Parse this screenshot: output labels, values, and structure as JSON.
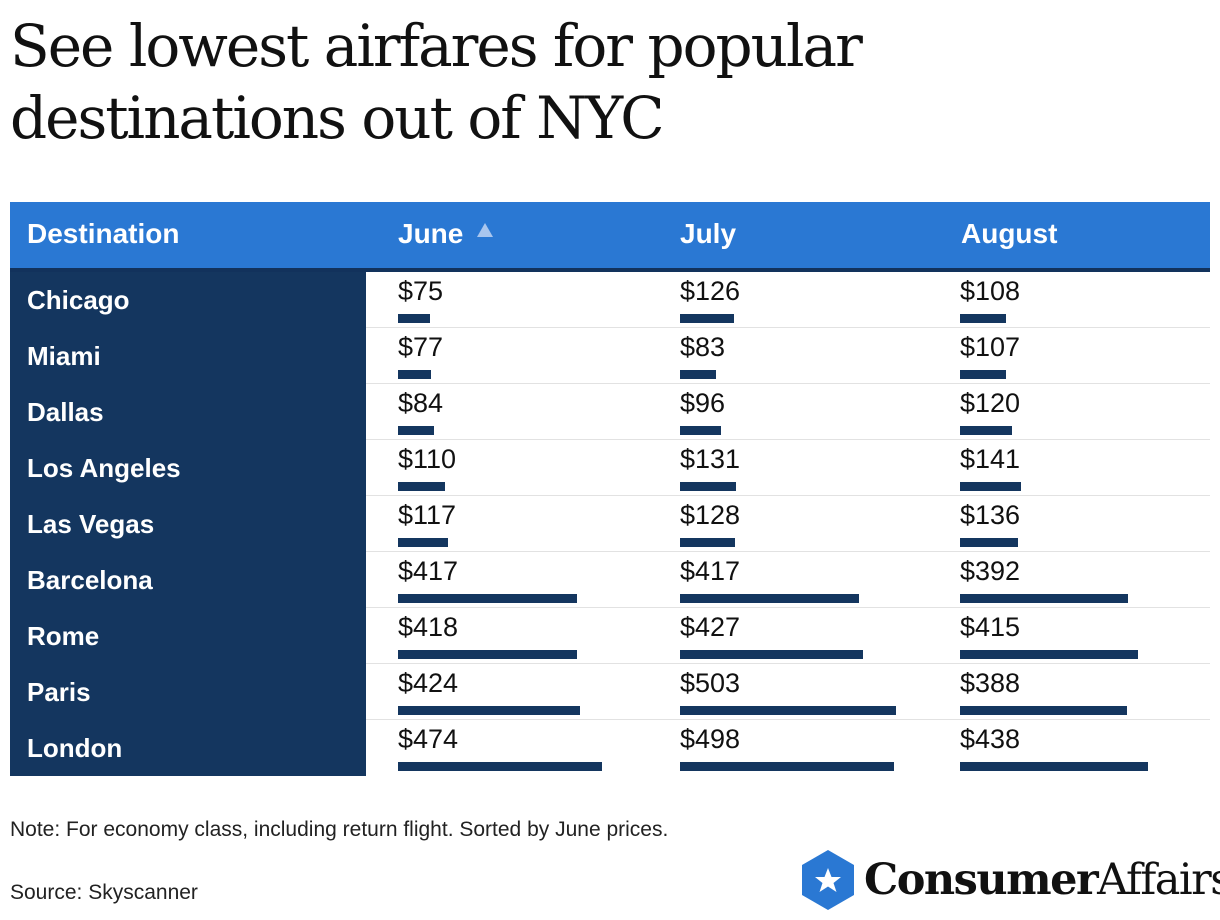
{
  "title": "See lowest airfares for popular destinations out of NYC",
  "headers": {
    "destination": "Destination",
    "june": "June",
    "july": "July",
    "august": "August"
  },
  "sort": {
    "column": "June",
    "direction": "ascending"
  },
  "colors": {
    "header_bg": "#2a78d3",
    "name_bg": "#14365f",
    "bar": "#14365f"
  },
  "chart_data": {
    "type": "table",
    "title": "See lowest airfares for popular destinations out of NYC",
    "columns": [
      "Destination",
      "June",
      "July",
      "August"
    ],
    "rows": [
      {
        "destination": "Chicago",
        "june": "$75",
        "july": "$126",
        "august": "$108",
        "values": [
          75,
          126,
          108
        ]
      },
      {
        "destination": "Miami",
        "june": "$77",
        "july": "$83",
        "august": "$107",
        "values": [
          77,
          83,
          107
        ]
      },
      {
        "destination": "Dallas",
        "june": "$84",
        "july": "$96",
        "august": "$120",
        "values": [
          84,
          96,
          120
        ]
      },
      {
        "destination": "Los Angeles",
        "june": "$110",
        "july": "$131",
        "august": "$141",
        "values": [
          110,
          131,
          141
        ]
      },
      {
        "destination": "Las Vegas",
        "june": "$117",
        "july": "$128",
        "august": "$136",
        "values": [
          117,
          128,
          136
        ]
      },
      {
        "destination": "Barcelona",
        "june": "$417",
        "july": "$417",
        "august": "$392",
        "values": [
          417,
          417,
          392
        ]
      },
      {
        "destination": "Rome",
        "june": "$418",
        "july": "$427",
        "august": "$415",
        "values": [
          418,
          427,
          415
        ]
      },
      {
        "destination": "Paris",
        "june": "$424",
        "july": "$503",
        "august": "$388",
        "values": [
          424,
          503,
          388
        ]
      },
      {
        "destination": "London",
        "june": "$474",
        "july": "$498",
        "august": "$438",
        "values": [
          474,
          498,
          438
        ]
      }
    ],
    "bar_max_value": 503
  },
  "note": "Note: For economy class, including return flight. Sorted by June prices.",
  "source": "Source: Skyscanner",
  "logo": {
    "brand_bold": "Consumer",
    "brand_light": "Affairs",
    "icon": "star-hexagon-icon"
  }
}
